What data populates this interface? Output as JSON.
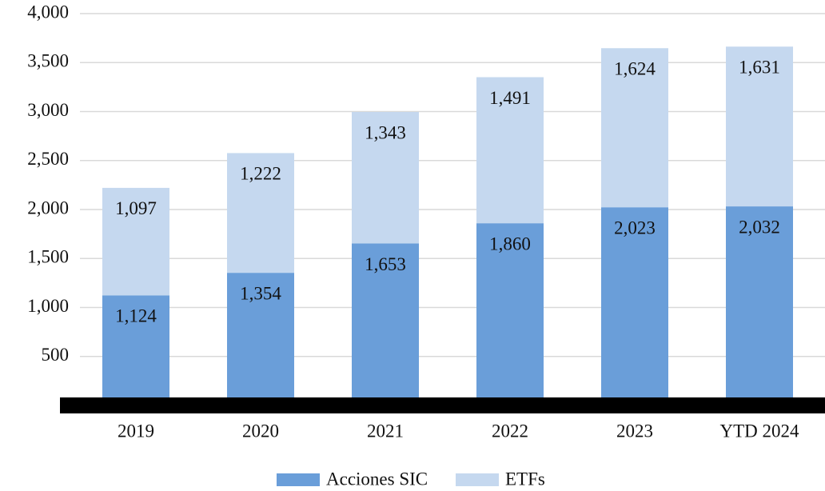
{
  "chart_data": {
    "type": "stacked-bar",
    "categories": [
      "2019",
      "2020",
      "2021",
      "2022",
      "2023",
      "YTD 2024"
    ],
    "series": [
      {
        "name": "Acciones SIC",
        "color": "#6a9ed9",
        "values": [
          1124,
          1354,
          1653,
          1860,
          2023,
          2032
        ],
        "value_labels": [
          "1,124",
          "1,354",
          "1,653",
          "1,860",
          "2,023",
          "2,032"
        ]
      },
      {
        "name": "ETFs",
        "color": "#c5d8ef",
        "values": [
          1097,
          1222,
          1343,
          1491,
          1624,
          1631
        ],
        "value_labels": [
          "1,097",
          "1,222",
          "1,343",
          "1,491",
          "1,624",
          "1,631"
        ]
      }
    ],
    "ylim": [
      0,
      4000
    ],
    "yticks": [
      500,
      {
        "value": 1000,
        "label": "1,000"
      },
      {
        "value": 1500,
        "label": "1,500"
      },
      {
        "value": 2000,
        "label": "2,000"
      },
      {
        "value": 2500,
        "label": "2,500"
      },
      {
        "value": 3000,
        "label": "3,000"
      },
      {
        "value": 3500,
        "label": "3,500"
      },
      {
        "value": 4000,
        "label": "4,000"
      }
    ],
    "grid": true
  }
}
